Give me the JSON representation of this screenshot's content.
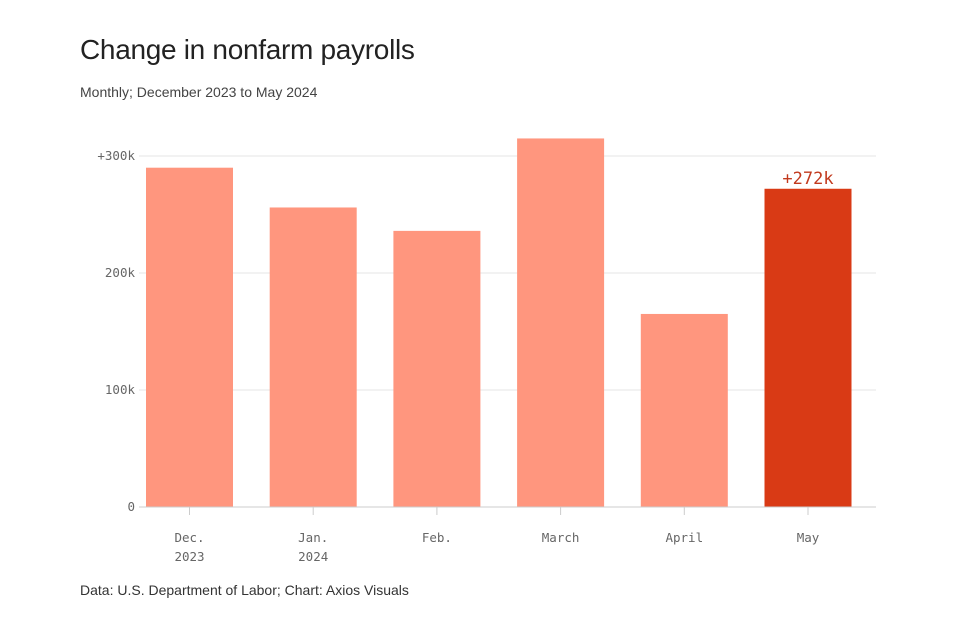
{
  "chart_data": {
    "type": "bar",
    "title": "Change in nonfarm payrolls",
    "subtitle": "Monthly; December 2023 to May 2024",
    "source": "Data: U.S. Department of Labor; Chart: Axios Visuals",
    "categories": [
      [
        "Dec.",
        "2023"
      ],
      [
        "Jan.",
        "2024"
      ],
      [
        "Feb."
      ],
      [
        "March"
      ],
      [
        "April"
      ],
      [
        "May"
      ]
    ],
    "values": [
      290,
      256,
      236,
      315,
      165,
      272
    ],
    "unit": "thousands",
    "ylim": [
      0,
      330
    ],
    "yticks": [
      0,
      100,
      200,
      300
    ],
    "ytick_labels": [
      "0",
      "100k",
      "200k",
      "+300k"
    ],
    "grid": true,
    "highlight_index": 5,
    "annotation": "+272k",
    "colors": {
      "bar": "#FF967E",
      "highlight": "#D93A15",
      "annotation": "#C23A1E",
      "grid": "#e6e6e6",
      "axis": "#cccccc"
    }
  }
}
